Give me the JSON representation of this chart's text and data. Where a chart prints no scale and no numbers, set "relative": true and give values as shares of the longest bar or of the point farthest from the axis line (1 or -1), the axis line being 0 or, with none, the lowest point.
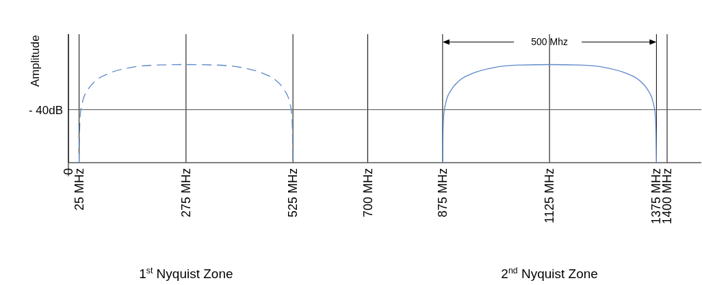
{
  "chart_data": {
    "type": "line",
    "relative": true,
    "ylabel": "Amplitude",
    "xlim": [
      0,
      1480
    ],
    "xticks": [
      {
        "value": 0,
        "label": "0"
      },
      {
        "value": 25,
        "label": "25 MHz"
      },
      {
        "value": 275,
        "label": "275 MHz"
      },
      {
        "value": 525,
        "label": "525 MHz"
      },
      {
        "value": 700,
        "label": "700 MHz"
      },
      {
        "value": 875,
        "label": "875 MHz"
      },
      {
        "value": 1125,
        "label": "1125 MHz"
      },
      {
        "value": 1375,
        "label": "1375 MHz"
      },
      {
        "value": 1400,
        "label": "1400 MHz"
      }
    ],
    "grid": "x",
    "ref_lines": [
      {
        "axis": "y",
        "value": 0.54,
        "label": "- 40dB",
        "color": "#555555"
      }
    ],
    "series": [
      {
        "color": "#5b87c9",
        "line_style": "dashed",
        "x": [
          25,
          26,
          28,
          33,
          45,
          65,
          95,
          145,
          205,
          275,
          345,
          405,
          455,
          485,
          505,
          517,
          522,
          524,
          525
        ],
        "values": [
          0,
          0.3,
          0.5,
          0.62,
          0.74,
          0.84,
          0.91,
          0.97,
          0.995,
          1,
          0.995,
          0.97,
          0.91,
          0.84,
          0.74,
          0.62,
          0.5,
          0.3,
          0
        ]
      },
      {
        "color": "#5b87c9",
        "line_style": "solid",
        "x": [
          875,
          876,
          878,
          883,
          895,
          915,
          945,
          995,
          1055,
          1125,
          1195,
          1255,
          1305,
          1335,
          1355,
          1367,
          1372,
          1374,
          1375
        ],
        "values": [
          0,
          0.3,
          0.5,
          0.62,
          0.74,
          0.84,
          0.91,
          0.97,
          0.995,
          1,
          0.995,
          0.97,
          0.91,
          0.84,
          0.74,
          0.62,
          0.5,
          0.3,
          0
        ]
      }
    ],
    "annotations": [
      "500 Mhz",
      "1$^{st}$ Nyquist Zone",
      "2$^{nd}$ Nyquist Zone"
    ]
  }
}
